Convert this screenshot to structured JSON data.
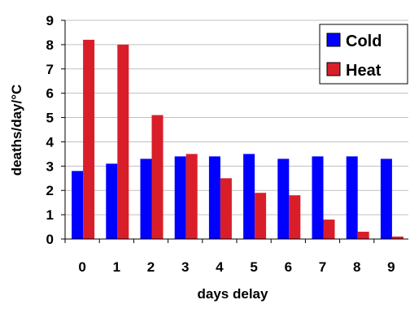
{
  "chart_data": {
    "type": "bar",
    "categories": [
      "0",
      "1",
      "2",
      "3",
      "4",
      "5",
      "6",
      "7",
      "8",
      "9"
    ],
    "series": [
      {
        "name": "Cold",
        "color": "#0000ff",
        "values": [
          2.8,
          3.1,
          3.3,
          3.4,
          3.4,
          3.5,
          3.3,
          3.4,
          3.4,
          3.3
        ]
      },
      {
        "name": "Heat",
        "color": "#d91e2a",
        "values": [
          8.2,
          8.0,
          5.1,
          3.5,
          2.5,
          1.9,
          1.8,
          0.8,
          0.3,
          0.1
        ]
      }
    ],
    "title": "",
    "xlabel": "days delay",
    "ylabel": "deaths/day/°C",
    "ylim": [
      0,
      9
    ],
    "yticks": [
      "0",
      "1",
      "2",
      "3",
      "4",
      "5",
      "6",
      "7",
      "8",
      "9"
    ],
    "grid": "horizontal",
    "legend_position": "top-right",
    "grid_color": "#c0c0c0",
    "axis_color": "#000000"
  }
}
